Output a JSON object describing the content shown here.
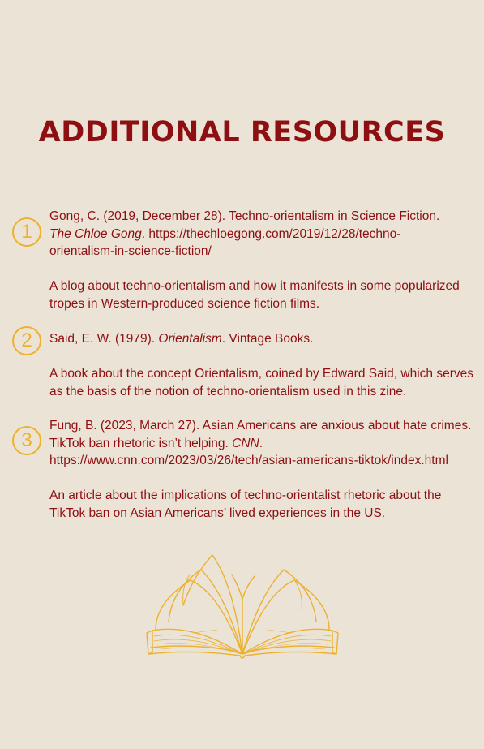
{
  "title": "ADDITIONAL RESOURCES",
  "colors": {
    "background": "#ebe3d6",
    "text": "#8e0f12",
    "accent": "#ecb12e"
  },
  "resources": [
    {
      "number": "1",
      "citation_before": "Gong, C. (2019, December 28). Techno-orientalism in Science Fiction.",
      "citation_italic": "The Chloe Gong",
      "citation_after": ". https://thechloegong.com/2019/12/28/techno-orientalism-in-science-fiction/",
      "description": "A blog about techno-orientalism and how it manifests in some popularized tropes in Western-produced science fiction films."
    },
    {
      "number": "2",
      "citation_before": "Said, E. W. (1979).",
      "citation_italic": "Orientalism",
      "citation_after": ". Vintage Books.",
      "description": "A book about the concept Orientalism, coined by Edward Said, which serves as the basis of the notion of techno-orientalism used in this zine."
    },
    {
      "number": "3",
      "citation_before": "Fung, B. (2023, March 27). Asian Americans are anxious about hate crimes. TikTok ban rhetoric isn’t helping.",
      "citation_italic": "CNN",
      "citation_after": ". https://www.cnn.com/2023/03/26/tech/asian-americans-tiktok/index.html",
      "description": "An article about the implications of techno-orientalist rhetoric about the TikTok ban on Asian Americans’ lived experiences in the US."
    }
  ],
  "illustration": {
    "icon": "open-book-icon"
  }
}
